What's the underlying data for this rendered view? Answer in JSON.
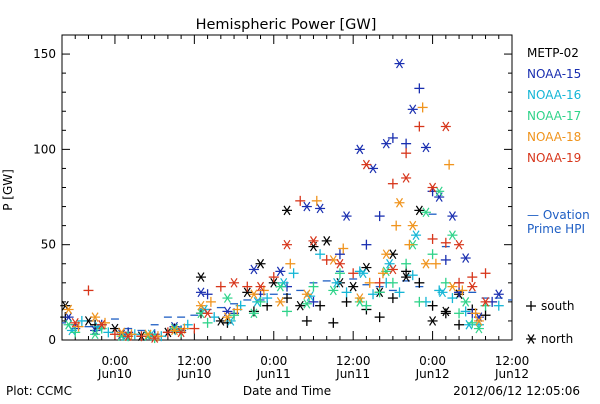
{
  "chart_data": {
    "type": "scatter",
    "title": "Hemispheric Power [GW]",
    "xlabel": "Date and Time",
    "ylabel": "P [GW]",
    "ylim": [
      0,
      160
    ],
    "yticks": [
      0,
      50,
      100,
      150
    ],
    "x_range_hours": [
      -8,
      60
    ],
    "xticks": [
      {
        "hour": 0,
        "time": "0:00",
        "date": "Jun10"
      },
      {
        "hour": 12,
        "time": "12:00",
        "date": "Jun10"
      },
      {
        "hour": 24,
        "time": "0:00",
        "date": "Jun11"
      },
      {
        "hour": 36,
        "time": "12:00",
        "date": "Jun11"
      },
      {
        "hour": 48,
        "time": "0:00",
        "date": "Jun12"
      },
      {
        "hour": 60,
        "time": "12:00",
        "date": "Jun12"
      }
    ],
    "x_minor_step_hours": 2,
    "legend_position": "right",
    "footer_left": "Plot: CCMC",
    "footer_right": "2012/06/12 12:05:06",
    "marker_legend": [
      {
        "symbol": "+",
        "label": "south"
      },
      {
        "symbol": "*",
        "label": "north"
      }
    ],
    "model": {
      "name_lines": [
        "— Ovation",
        "Prime HPI"
      ],
      "color": "#1f5fc4",
      "x": [
        -8,
        -6,
        -4,
        -2,
        0,
        2,
        4,
        6,
        8,
        10,
        12,
        14,
        16,
        18,
        20,
        22,
        24,
        26,
        28,
        30,
        32,
        34,
        36,
        38,
        40,
        42,
        44,
        46,
        48,
        50,
        52,
        54,
        56,
        58,
        60
      ],
      "values": [
        9,
        8,
        7,
        6,
        11,
        6,
        5,
        8,
        12,
        12,
        13,
        16,
        17,
        19,
        21,
        21,
        24,
        24,
        26,
        30,
        31,
        36,
        32,
        29,
        28,
        26,
        31,
        28,
        66,
        49,
        30,
        25,
        22,
        22,
        21
      ]
    },
    "series": [
      {
        "name": "METP-02",
        "color": "#000000",
        "south": [
          [
            -7.5,
            12
          ],
          [
            -3,
            8
          ],
          [
            2,
            3
          ],
          [
            6,
            2
          ],
          [
            9,
            6
          ],
          [
            13,
            14
          ],
          [
            17,
            9
          ],
          [
            21,
            15
          ],
          [
            23,
            18
          ],
          [
            26,
            22
          ],
          [
            29,
            10
          ],
          [
            31,
            18
          ],
          [
            33,
            9
          ],
          [
            35,
            20
          ],
          [
            38,
            16
          ],
          [
            40,
            12
          ],
          [
            42,
            22
          ],
          [
            44,
            36
          ],
          [
            46,
            30
          ],
          [
            48,
            18
          ],
          [
            50,
            14
          ],
          [
            52,
            8
          ],
          [
            54,
            16
          ],
          [
            56,
            13
          ]
        ],
        "north": [
          [
            -7.5,
            18
          ],
          [
            -4,
            10
          ],
          [
            0,
            6
          ],
          [
            4,
            2
          ],
          [
            8,
            4
          ],
          [
            13,
            33
          ],
          [
            16,
            10
          ],
          [
            20,
            25
          ],
          [
            22,
            40
          ],
          [
            24,
            30
          ],
          [
            26,
            68
          ],
          [
            28,
            18
          ],
          [
            30,
            49
          ],
          [
            32,
            52
          ],
          [
            34,
            30
          ],
          [
            36,
            28
          ],
          [
            38,
            38
          ],
          [
            40,
            25
          ],
          [
            42,
            45
          ],
          [
            44,
            33
          ],
          [
            46,
            68
          ],
          [
            48,
            10
          ],
          [
            50,
            15
          ],
          [
            52,
            24
          ]
        ]
      },
      {
        "name": "NOAA-15",
        "color": "#1a2fb0",
        "south": [
          [
            -6,
            6
          ],
          [
            -2,
            8
          ],
          [
            2,
            4
          ],
          [
            6,
            3
          ],
          [
            10,
            5
          ],
          [
            14,
            24
          ],
          [
            18,
            14
          ],
          [
            22,
            24
          ],
          [
            26,
            28
          ],
          [
            30,
            20
          ],
          [
            34,
            45
          ],
          [
            38,
            50
          ],
          [
            40,
            65
          ],
          [
            42,
            106
          ],
          [
            44,
            103
          ],
          [
            46,
            132
          ],
          [
            48,
            78
          ],
          [
            50,
            42
          ],
          [
            52,
            25
          ],
          [
            54,
            14
          ],
          [
            57,
            20
          ]
        ],
        "north": [
          [
            -7,
            12
          ],
          [
            -3,
            5
          ],
          [
            1,
            3
          ],
          [
            5,
            2
          ],
          [
            9,
            7
          ],
          [
            13,
            25
          ],
          [
            17,
            15
          ],
          [
            21,
            37
          ],
          [
            25,
            36
          ],
          [
            29,
            70
          ],
          [
            31,
            69
          ],
          [
            35,
            65
          ],
          [
            37,
            100
          ],
          [
            39,
            90
          ],
          [
            41,
            103
          ],
          [
            43,
            145
          ],
          [
            45,
            121
          ],
          [
            47,
            101
          ],
          [
            49,
            75
          ],
          [
            51,
            65
          ],
          [
            53,
            43
          ],
          [
            55,
            12
          ],
          [
            58,
            24
          ]
        ]
      },
      {
        "name": "NOAA-16",
        "color": "#15b6d6",
        "south": [
          [
            -5,
            10
          ],
          [
            -1,
            4
          ],
          [
            3,
            3
          ],
          [
            7,
            2
          ],
          [
            11,
            8
          ],
          [
            15,
            12
          ],
          [
            19,
            18
          ],
          [
            23,
            22
          ],
          [
            27,
            35
          ],
          [
            31,
            45
          ],
          [
            35,
            25
          ],
          [
            37,
            36
          ],
          [
            39,
            24
          ],
          [
            41,
            30
          ],
          [
            43,
            25
          ],
          [
            45,
            34
          ],
          [
            47,
            20
          ],
          [
            49,
            26
          ],
          [
            51,
            22
          ],
          [
            53,
            15
          ],
          [
            55,
            8
          ],
          [
            58,
            18
          ]
        ],
        "north": [
          [
            -6.5,
            5
          ],
          [
            -2.5,
            7
          ],
          [
            1.5,
            2
          ],
          [
            5.5,
            3
          ],
          [
            9.5,
            5
          ],
          [
            13.5,
            16
          ],
          [
            17.5,
            10
          ],
          [
            21.5,
            20
          ],
          [
            25.5,
            30
          ],
          [
            29.5,
            23
          ],
          [
            33.5,
            30
          ],
          [
            37.5,
            35
          ],
          [
            41.5,
            40
          ],
          [
            45.5,
            55
          ],
          [
            49.5,
            25
          ],
          [
            53.5,
            8
          ]
        ]
      },
      {
        "name": "NOAA-17",
        "color": "#2fd38a",
        "south": [
          [
            -6,
            4
          ],
          [
            -2,
            6
          ],
          [
            2,
            2
          ],
          [
            6,
            1
          ],
          [
            10,
            4
          ],
          [
            14,
            9
          ],
          [
            18,
            13
          ],
          [
            22,
            20
          ],
          [
            26,
            15
          ],
          [
            30,
            28
          ],
          [
            34,
            35
          ],
          [
            38,
            18
          ],
          [
            40,
            25
          ],
          [
            42,
            30
          ],
          [
            44,
            40
          ],
          [
            46,
            20
          ],
          [
            48,
            45
          ],
          [
            50,
            30
          ],
          [
            52,
            14
          ],
          [
            54,
            9
          ],
          [
            56,
            18
          ]
        ],
        "north": [
          [
            -7,
            8
          ],
          [
            -3,
            3
          ],
          [
            1,
            2
          ],
          [
            5,
            2
          ],
          [
            9,
            6
          ],
          [
            13,
            14
          ],
          [
            17,
            22
          ],
          [
            21,
            14
          ],
          [
            25,
            28
          ],
          [
            29,
            19
          ],
          [
            33,
            26
          ],
          [
            37,
            20
          ],
          [
            41,
            36
          ],
          [
            45,
            50
          ],
          [
            47,
            67
          ],
          [
            49,
            78
          ],
          [
            51,
            55
          ],
          [
            53,
            20
          ],
          [
            55,
            6
          ]
        ]
      },
      {
        "name": "NOAA-18",
        "color": "#f0941d",
        "south": [
          [
            -5.5,
            7
          ],
          [
            -1.5,
            9
          ],
          [
            2.5,
            3
          ],
          [
            6.5,
            2
          ],
          [
            10.5,
            6
          ],
          [
            14.5,
            20
          ],
          [
            18.5,
            16
          ],
          [
            22.5,
            26
          ],
          [
            26.5,
            40
          ],
          [
            30.5,
            73
          ],
          [
            34.5,
            48
          ],
          [
            38.5,
            30
          ],
          [
            40.5,
            35
          ],
          [
            42.5,
            60
          ],
          [
            44.5,
            50
          ],
          [
            46.5,
            122
          ],
          [
            48.5,
            40
          ],
          [
            50.5,
            92
          ],
          [
            52.5,
            26
          ],
          [
            54.5,
            14
          ]
        ],
        "north": [
          [
            -7,
            16
          ],
          [
            -3,
            12
          ],
          [
            1,
            4
          ],
          [
            5,
            3
          ],
          [
            9,
            5
          ],
          [
            13,
            18
          ],
          [
            17,
            12
          ],
          [
            21,
            24
          ],
          [
            25,
            20
          ],
          [
            29,
            24
          ],
          [
            33,
            42
          ],
          [
            37,
            22
          ],
          [
            41,
            45
          ],
          [
            43,
            72
          ],
          [
            45,
            60
          ],
          [
            47,
            40
          ],
          [
            51,
            28
          ],
          [
            55,
            10
          ]
        ]
      },
      {
        "name": "NOAA-19",
        "color": "#d7361b",
        "south": [
          [
            -4,
            26
          ],
          [
            0,
            3
          ],
          [
            4,
            2
          ],
          [
            8,
            4
          ],
          [
            12,
            6
          ],
          [
            16,
            28
          ],
          [
            20,
            28
          ],
          [
            24,
            33
          ],
          [
            28,
            73
          ],
          [
            32,
            42
          ],
          [
            36,
            35
          ],
          [
            40,
            30
          ],
          [
            42,
            82
          ],
          [
            44,
            98
          ],
          [
            46,
            112
          ],
          [
            48,
            53
          ],
          [
            50,
            51
          ],
          [
            52,
            30
          ],
          [
            54,
            33
          ],
          [
            56,
            35
          ]
        ],
        "north": [
          [
            -6,
            9
          ],
          [
            -2,
            8
          ],
          [
            2,
            2
          ],
          [
            6,
            1
          ],
          [
            10,
            4
          ],
          [
            14,
            14
          ],
          [
            18,
            30
          ],
          [
            22,
            28
          ],
          [
            26,
            50
          ],
          [
            30,
            52
          ],
          [
            34,
            40
          ],
          [
            38,
            92
          ],
          [
            42,
            37
          ],
          [
            44,
            85
          ],
          [
            48,
            80
          ],
          [
            50,
            112
          ],
          [
            52,
            50
          ],
          [
            54,
            28
          ],
          [
            56,
            20
          ]
        ]
      }
    ]
  }
}
